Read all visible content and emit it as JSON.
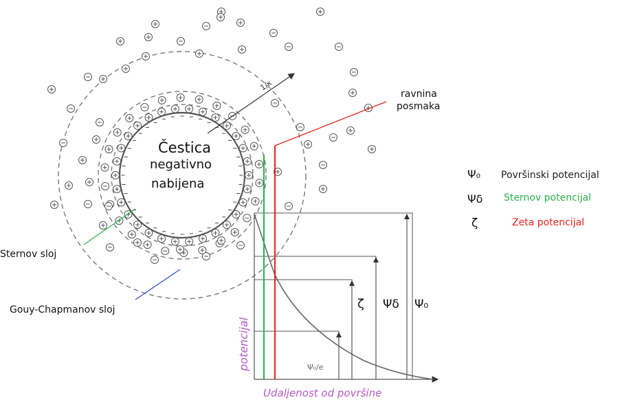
{
  "particle": {
    "title": "Čestica",
    "subtitle_line1": "negativno",
    "subtitle_line2": "nabijena"
  },
  "labels": {
    "debye_length": "1/κ",
    "shear_plane_line1": "ravnina",
    "shear_plane_line2": "posmaka",
    "stern_layer": "Sternov sloj",
    "diffuse_layer": "Gouy-Chapmanov sloj"
  },
  "legend": [
    {
      "symbol": "Ψ₀",
      "text": "Površinski potencijal",
      "color": "#1a1a1a"
    },
    {
      "symbol": "Ψδ",
      "text": "Sternov potencijal",
      "color": "#2bb04a"
    },
    {
      "symbol": "ζ",
      "text": "Zeta potencijal",
      "color": "#e0231c"
    }
  ],
  "plot": {
    "ylabel": "potencijal",
    "xlabel": "Udaljenost od površine",
    "marker_zeta": "ζ",
    "marker_stern": "Ψδ",
    "marker_surface": "Ψ₀",
    "marker_decay": "Ψ₀/e"
  },
  "colors": {
    "stern": "#2bb04a",
    "shear": "#e0231c",
    "axis_label": "#b35bc4",
    "diffuse_pointer": "#3346c8",
    "ion_stroke": "#555555",
    "dash": "#777777"
  }
}
